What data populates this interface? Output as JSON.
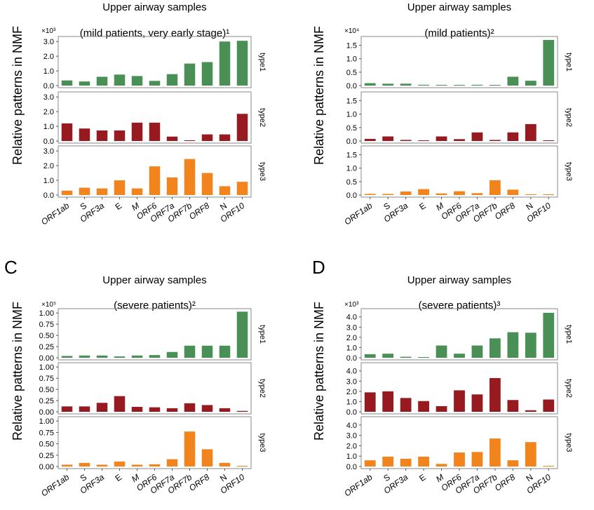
{
  "chart_data": [
    {
      "type": "bar",
      "panel_letter": "",
      "title": "Upper airway samples",
      "subtitle": "(mild patients, very early stage)¹",
      "ylabel": "Relative patterns in NMF",
      "multiplier": "×10³",
      "categories": [
        "ORF1ab",
        "S",
        "ORF3a",
        "E",
        "M",
        "ORF6",
        "ORF7a",
        "ORF7b",
        "ORF8",
        "N",
        "ORF10"
      ],
      "ylim": [
        0,
        3.2
      ],
      "yticks": [
        "0.0",
        "1.0",
        "2.0",
        "3.0"
      ],
      "series": [
        {
          "name": "type1",
          "color": "#4a8f55",
          "values": [
            0.35,
            0.28,
            0.6,
            0.75,
            0.65,
            0.32,
            0.78,
            1.5,
            1.6,
            3.0,
            3.05
          ]
        },
        {
          "name": "type2",
          "color": "#961a1f",
          "values": [
            1.2,
            0.85,
            0.72,
            0.72,
            1.25,
            1.25,
            0.3,
            0.05,
            0.45,
            0.45,
            1.85
          ]
        },
        {
          "name": "type3",
          "color": "#f2841d",
          "values": [
            0.3,
            0.5,
            0.45,
            1.0,
            0.45,
            1.95,
            1.2,
            2.45,
            1.5,
            0.6,
            0.9
          ]
        }
      ]
    },
    {
      "type": "bar",
      "panel_letter": "",
      "title": "Upper airway samples",
      "subtitle": "(mild patients)²",
      "ylabel": "Relative patterns in NMF",
      "multiplier": "×10⁴",
      "categories": [
        "ORF1ab",
        "S",
        "ORF3a",
        "E",
        "M",
        "ORF6",
        "ORF7a",
        "ORF7b",
        "ORF8",
        "N",
        "ORF10"
      ],
      "ylim": [
        0,
        1.75
      ],
      "yticks": [
        "0.0",
        "0.5",
        "1.0",
        "1.5"
      ],
      "series": [
        {
          "name": "type1",
          "color": "#4a8f55",
          "values": [
            0.09,
            0.07,
            0.07,
            0.03,
            0.02,
            0.02,
            0.03,
            0.02,
            0.33,
            0.18,
            1.7
          ]
        },
        {
          "name": "type2",
          "color": "#961a1f",
          "values": [
            0.08,
            0.17,
            0.04,
            0.02,
            0.17,
            0.07,
            0.32,
            0.04,
            0.32,
            0.63,
            0.02
          ]
        },
        {
          "name": "type3",
          "color": "#f2841d",
          "values": [
            0.04,
            0.04,
            0.13,
            0.22,
            0.06,
            0.14,
            0.07,
            0.55,
            0.2,
            0.01,
            0.01
          ]
        }
      ]
    },
    {
      "type": "bar",
      "panel_letter": "C",
      "title": "Upper airway samples",
      "subtitle": "(severe patients)²",
      "ylabel": "Relative patterns in NMF",
      "multiplier": "×10⁵",
      "categories": [
        "ORF1ab",
        "S",
        "ORF3a",
        "E",
        "M",
        "ORF6",
        "ORF7a",
        "ORF7b",
        "ORF8",
        "N",
        "ORF10"
      ],
      "ylim": [
        0,
        1.05
      ],
      "yticks": [
        "0.00",
        "0.25",
        "0.50",
        "0.75",
        "1.00"
      ],
      "series": [
        {
          "name": "type1",
          "color": "#4a8f55",
          "values": [
            0.04,
            0.05,
            0.05,
            0.03,
            0.05,
            0.06,
            0.13,
            0.27,
            0.27,
            0.27,
            1.03
          ]
        },
        {
          "name": "type2",
          "color": "#961a1f",
          "values": [
            0.12,
            0.12,
            0.2,
            0.35,
            0.11,
            0.1,
            0.08,
            0.19,
            0.15,
            0.08,
            0.02
          ]
        },
        {
          "name": "type3",
          "color": "#f2841d",
          "values": [
            0.04,
            0.08,
            0.04,
            0.11,
            0.04,
            0.05,
            0.16,
            0.77,
            0.38,
            0.08,
            0.01
          ]
        }
      ]
    },
    {
      "type": "bar",
      "panel_letter": "D",
      "title": "Upper airway samples",
      "subtitle": "(severe patients)³",
      "ylabel": "Relative patterns in NMF",
      "multiplier": "×10³",
      "categories": [
        "ORF1ab",
        "S",
        "ORF3a",
        "E",
        "M",
        "ORF6",
        "ORF7a",
        "ORF7b",
        "ORF8",
        "N",
        "ORF10"
      ],
      "ylim": [
        0,
        4.6
      ],
      "yticks": [
        "0.0",
        "1.0",
        "2.0",
        "3.0",
        "4.0"
      ],
      "series": [
        {
          "name": "type1",
          "color": "#4a8f55",
          "values": [
            0.35,
            0.4,
            0.1,
            0.05,
            1.2,
            0.4,
            1.2,
            1.9,
            2.5,
            2.45,
            4.4
          ]
        },
        {
          "name": "type2",
          "color": "#961a1f",
          "values": [
            1.9,
            2.0,
            1.35,
            1.05,
            0.55,
            2.1,
            1.7,
            3.3,
            1.15,
            0.15,
            1.2
          ]
        },
        {
          "name": "type3",
          "color": "#f2841d",
          "values": [
            0.6,
            0.95,
            0.75,
            0.95,
            0.25,
            1.35,
            1.4,
            2.7,
            0.6,
            2.35,
            0.05
          ]
        }
      ]
    }
  ]
}
